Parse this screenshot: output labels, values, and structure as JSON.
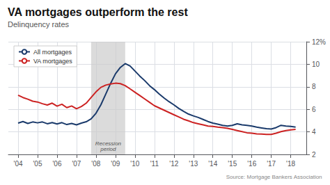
{
  "chart_data": {
    "type": "line",
    "title": "VA mortgages outperform the rest",
    "subtitle": "Delinquency rates",
    "source": "Source: Mortgage Bankers Association",
    "x": [
      2004.0,
      2004.25,
      2004.5,
      2004.75,
      2005.0,
      2005.25,
      2005.5,
      2005.75,
      2006.0,
      2006.25,
      2006.5,
      2006.75,
      2007.0,
      2007.25,
      2007.5,
      2007.75,
      2008.0,
      2008.25,
      2008.5,
      2008.75,
      2009.0,
      2009.25,
      2009.5,
      2009.75,
      2010.0,
      2010.25,
      2010.5,
      2010.75,
      2011.0,
      2011.25,
      2011.5,
      2011.75,
      2012.0,
      2012.25,
      2012.5,
      2012.75,
      2013.0,
      2013.25,
      2013.5,
      2013.75,
      2014.0,
      2014.25,
      2014.5,
      2014.75,
      2015.0,
      2015.25,
      2015.5,
      2015.75,
      2016.0,
      2016.25,
      2016.5,
      2016.75,
      2017.0,
      2017.25,
      2017.5,
      2017.75,
      2018.0,
      2018.25
    ],
    "series": [
      {
        "name": "All mortgages",
        "color": "#1a3a6b",
        "values": [
          4.78,
          4.92,
          4.75,
          4.88,
          4.8,
          4.88,
          4.72,
          4.82,
          4.7,
          4.82,
          4.65,
          4.75,
          4.62,
          4.78,
          4.9,
          5.15,
          5.65,
          6.4,
          7.35,
          8.3,
          9.15,
          9.72,
          10.06,
          9.85,
          9.4,
          8.95,
          8.55,
          8.1,
          7.75,
          7.35,
          7.0,
          6.68,
          6.4,
          6.08,
          5.82,
          5.58,
          5.42,
          5.28,
          5.1,
          4.92,
          4.78,
          4.68,
          4.58,
          4.52,
          4.58,
          4.72,
          4.62,
          4.58,
          4.52,
          4.42,
          4.35,
          4.28,
          4.25,
          4.38,
          4.58,
          4.52,
          4.48,
          4.42
        ]
      },
      {
        "name": "VA mortgages",
        "color": "#cc2222",
        "values": [
          7.25,
          7.05,
          6.9,
          6.72,
          6.65,
          6.5,
          6.38,
          6.55,
          6.28,
          6.45,
          6.15,
          6.3,
          6.05,
          6.25,
          6.55,
          7.05,
          7.55,
          7.95,
          8.15,
          8.25,
          8.32,
          8.28,
          8.1,
          7.82,
          7.52,
          7.22,
          6.92,
          6.62,
          6.32,
          6.12,
          5.92,
          5.72,
          5.52,
          5.32,
          5.12,
          4.98,
          4.82,
          4.72,
          4.62,
          4.52,
          4.48,
          4.42,
          4.38,
          4.32,
          4.22,
          4.12,
          4.02,
          3.92,
          3.88,
          3.82,
          3.8,
          3.78,
          3.78,
          3.88,
          4.02,
          4.12,
          4.18,
          4.22
        ]
      }
    ],
    "shaded_ranges": [
      {
        "start": 2007.75,
        "end": 2009.5,
        "label": "Recession\nperiod",
        "color": "#cccccc"
      }
    ],
    "xlim": [
      2003.5,
      2018.8
    ],
    "xticks": [
      {
        "value": 2004,
        "label": "'04"
      },
      {
        "value": 2005,
        "label": "'05"
      },
      {
        "value": 2006,
        "label": "'06"
      },
      {
        "value": 2007,
        "label": "'07"
      },
      {
        "value": 2008,
        "label": "'08"
      },
      {
        "value": 2009,
        "label": "'09"
      },
      {
        "value": 2010,
        "label": "'10"
      },
      {
        "value": 2011,
        "label": "'11"
      },
      {
        "value": 2012,
        "label": "'12"
      },
      {
        "value": 2013,
        "label": "'13"
      },
      {
        "value": 2014,
        "label": "'14"
      },
      {
        "value": 2015,
        "label": "'15"
      },
      {
        "value": 2016,
        "label": "'16"
      },
      {
        "value": 2017,
        "label": "'17"
      },
      {
        "value": 2018,
        "label": "'18"
      }
    ],
    "ylim": [
      2,
      12
    ],
    "yticks": [
      2,
      4,
      6,
      8,
      10,
      {
        "value": 12,
        "label": "12%"
      }
    ],
    "grid": true,
    "legend": "upper left"
  }
}
